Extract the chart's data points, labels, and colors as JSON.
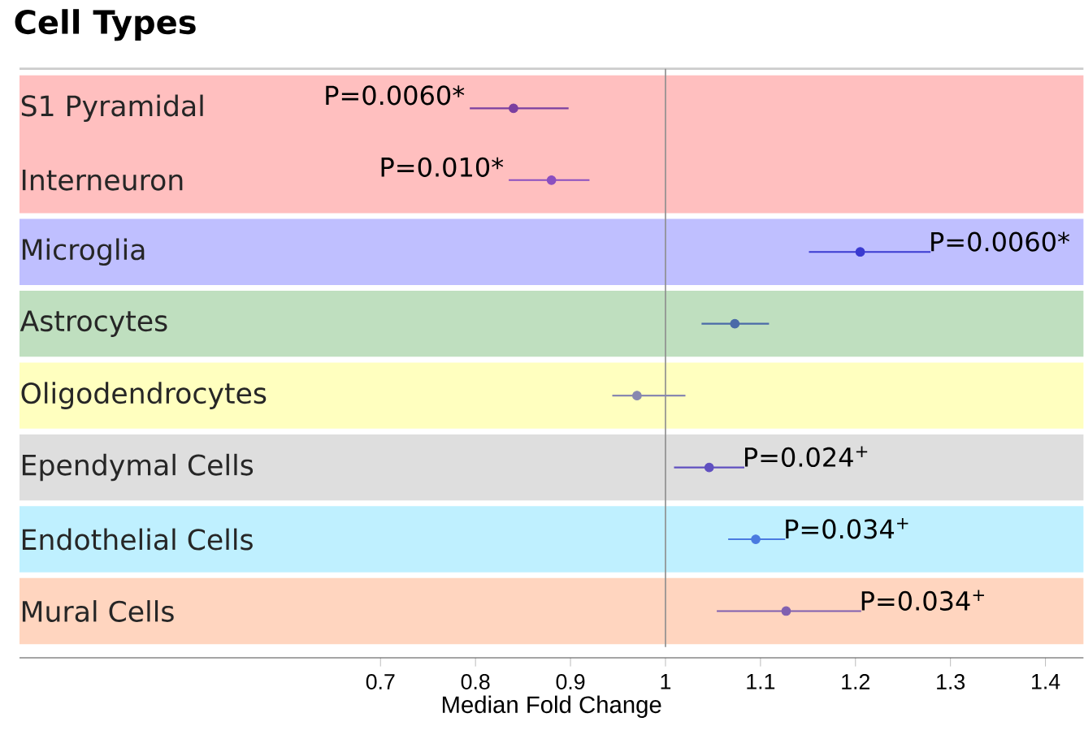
{
  "chart_data": {
    "type": "scatter",
    "orientation": "horizontal",
    "title": "Cell Types",
    "xlabel": "Median Fold Change",
    "categories": [
      "S1 Pyramidal",
      "Interneuron",
      "Microglia",
      "Astrocytes",
      "Oligodendrocytes",
      "Ependymal Cells",
      "Endothelial Cells",
      "Mural Cells"
    ],
    "values": [
      0.84,
      0.88,
      1.205,
      1.073,
      0.97,
      1.046,
      1.095,
      1.127
    ],
    "errors": [
      [
        0.794,
        0.898
      ],
      [
        0.835,
        0.92
      ],
      [
        1.151,
        1.279
      ],
      [
        1.038,
        1.109
      ],
      [
        0.944,
        1.021
      ],
      [
        1.009,
        1.083
      ],
      [
        1.066,
        1.126
      ],
      [
        1.054,
        1.206
      ]
    ],
    "colors": [
      "#7b3fa0",
      "#8a4fc0",
      "#3a3ad0",
      "#4a6aa8",
      "#8888b0",
      "#6050c0",
      "#4a7ae0",
      "#8060b0"
    ],
    "marker": "circle",
    "xlim": [
      0.32,
      1.44
    ],
    "xticks": [
      0.7,
      0.8,
      0.9,
      1,
      1.1,
      1.2,
      1.3,
      1.4
    ],
    "ref_lines": [
      {
        "axis": "x",
        "value": 1,
        "color": "#8c8c8c"
      }
    ],
    "bands": [
      {
        "axis": "y",
        "from": "S1 Pyramidal",
        "to": "Interneuron",
        "color": "#ffbfbf"
      },
      {
        "axis": "y",
        "from": "Microglia",
        "to": "Microglia",
        "color": "#bfbfff"
      },
      {
        "axis": "y",
        "from": "Astrocytes",
        "to": "Astrocytes",
        "color": "#bfdfbf"
      },
      {
        "axis": "y",
        "from": "Oligodendrocytes",
        "to": "Oligodendrocytes",
        "color": "#ffffbf"
      },
      {
        "axis": "y",
        "from": "Ependymal Cells",
        "to": "Ependymal Cells",
        "color": "#dedede"
      },
      {
        "axis": "y",
        "from": "Endothelial Cells",
        "to": "Endothelial Cells",
        "color": "#bff0ff"
      },
      {
        "axis": "y",
        "from": "Mural Cells",
        "to": "Mural Cells",
        "color": "#ffd5bf"
      }
    ],
    "annotations": [
      {
        "text": "P=0.0060*",
        "x": 0.84,
        "y": "S1 Pyramidal"
      },
      {
        "text": "P=0.010*",
        "x": 0.88,
        "y": "Interneuron"
      },
      {
        "text": "P=0.0060*",
        "x": 1.205,
        "y": "Microglia"
      },
      {
        "text": "P=0.024$^{+}$",
        "x": 1.046,
        "y": "Ependymal Cells"
      },
      {
        "text": "P=0.034$^{+}$",
        "x": 1.095,
        "y": "Endothelial Cells"
      },
      {
        "text": "P=0.034$^{+}$",
        "x": 1.127,
        "y": "Mural Cells"
      }
    ]
  }
}
